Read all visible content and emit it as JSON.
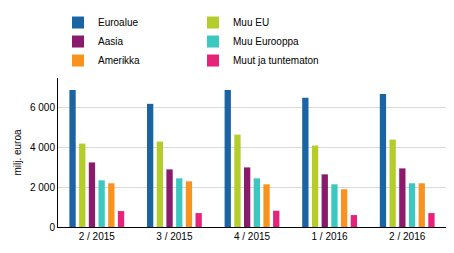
{
  "chart_data": {
    "type": "bar",
    "y_label": "milj. euroa",
    "categories": [
      "2 / 2015",
      "3 / 2015",
      "4 / 2015",
      "1 / 2016",
      "2 / 2016"
    ],
    "series": [
      {
        "name": "Euroalue",
        "color": "#1b64a4",
        "values": [
          6900,
          6200,
          6900,
          6500,
          6700
        ]
      },
      {
        "name": "Muu EU",
        "color": "#b4cd2b",
        "values": [
          4200,
          4300,
          4650,
          4100,
          4400
        ]
      },
      {
        "name": "Aasia",
        "color": "#8a1a6c",
        "values": [
          3250,
          2900,
          3000,
          2650,
          2950
        ]
      },
      {
        "name": "Muu Eurooppa",
        "color": "#3cc8c0",
        "values": [
          2350,
          2450,
          2450,
          2150,
          2200
        ]
      },
      {
        "name": "Amerikka",
        "color": "#f7931e",
        "values": [
          2200,
          2300,
          2150,
          1900,
          2200
        ]
      },
      {
        "name": "Muut ja tuntematon",
        "color": "#e5237a",
        "values": [
          800,
          700,
          820,
          600,
          700
        ]
      }
    ],
    "ylim": [
      0,
      7500
    ],
    "yticks": [
      0,
      {
        "value": 2000,
        "label": "2 000"
      },
      {
        "value": 4000,
        "label": "4 000"
      },
      {
        "value": 6000,
        "label": "6 000"
      }
    ],
    "grid": true,
    "legend": "top"
  }
}
